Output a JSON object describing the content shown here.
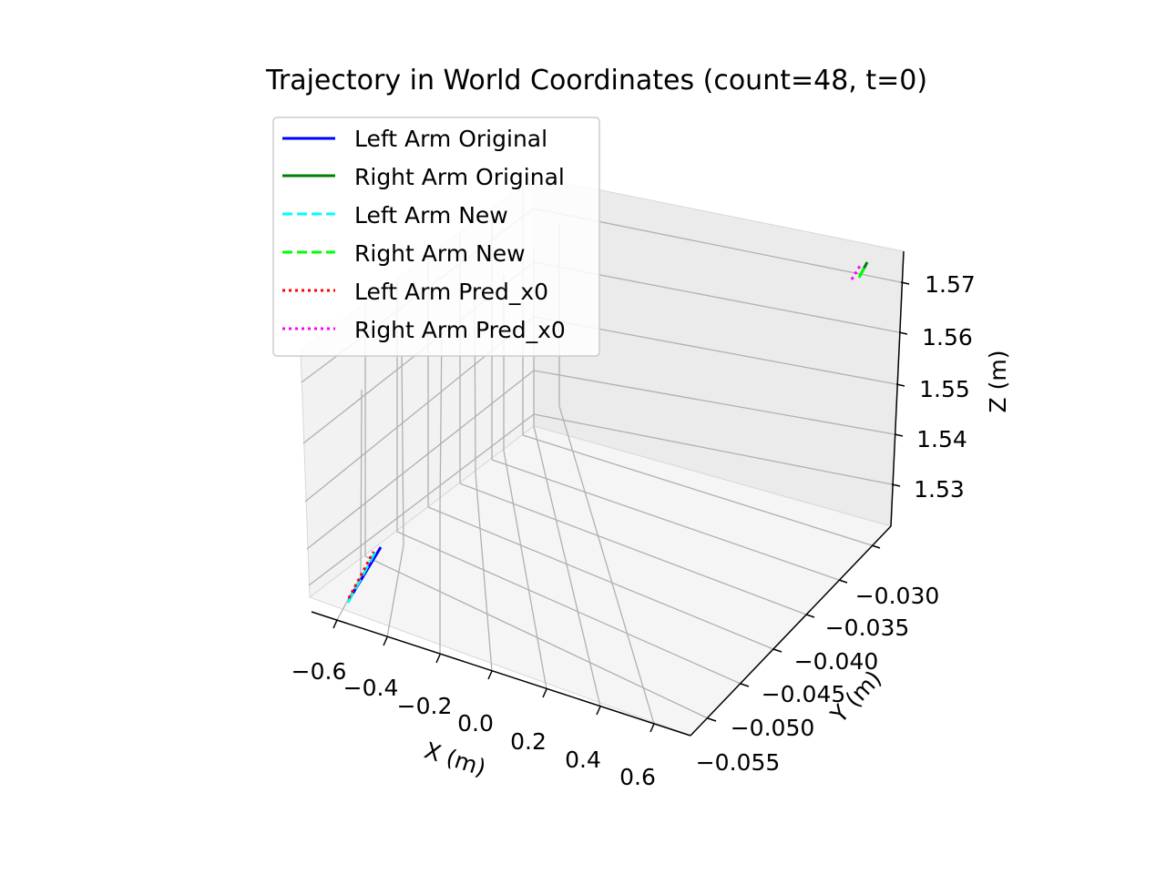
{
  "chart_data": {
    "type": "line",
    "projection": "3d",
    "title": "Trajectory in World Coordinates (count=48, t=0)",
    "xlabel": "X (m)",
    "ylabel": "Y (m)",
    "zlabel": "Z (m)",
    "xlim": [
      -0.7,
      0.7
    ],
    "ylim": [
      -0.057,
      -0.027
    ],
    "zlim": [
      1.522,
      1.574
    ],
    "xticks": [
      "−0.6",
      "−0.4",
      "−0.2",
      "0.0",
      "0.2",
      "0.4",
      "0.6"
    ],
    "yticks": [
      "−0.030",
      "−0.035",
      "−0.040",
      "−0.045",
      "−0.050",
      "−0.055"
    ],
    "zticks": [
      "1.57",
      "1.56",
      "1.55",
      "1.54",
      "1.53"
    ],
    "grid": true,
    "legend_position": "upper-left",
    "series": [
      {
        "name": "Left Arm Original",
        "color": "#0000ff",
        "style": "solid"
      },
      {
        "name": "Right Arm Original",
        "color": "#008000",
        "style": "solid"
      },
      {
        "name": "Left Arm New",
        "color": "#00ffff",
        "style": "dashed"
      },
      {
        "name": "Right Arm New",
        "color": "#00ff00",
        "style": "dashed"
      },
      {
        "name": "Left Arm Pred_x0",
        "color": "#ff0000",
        "style": "dotted"
      },
      {
        "name": "Right Arm Pred_x0",
        "color": "#ff00ff",
        "style": "dotted"
      }
    ]
  }
}
